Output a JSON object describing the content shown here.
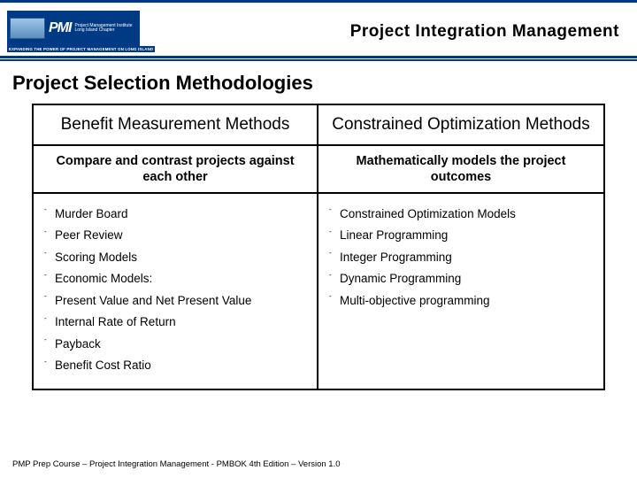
{
  "header": {
    "logo_acronym": "PMI",
    "logo_line1": "Project Management Institute",
    "logo_line2": "Long Island Chapter",
    "logo_tagline": "EXPANDING THE POWER OF PROJECT MANAGEMENT ON LONG ISLAND",
    "title": "Project Integration Management"
  },
  "section_title": "Project Selection Methodologies",
  "table": {
    "columns": [
      {
        "heading": "Benefit Measurement Methods",
        "subheading": "Compare and contrast projects against each other",
        "items": [
          "Murder Board",
          "Peer Review",
          "Scoring Models",
          "Economic Models:",
          "Present Value and Net Present Value",
          "Internal Rate of Return",
          "Payback",
          "Benefit Cost Ratio"
        ]
      },
      {
        "heading": "Constrained Optimization Methods",
        "subheading": "Mathematically models the project outcomes",
        "items": [
          "Constrained Optimization Models",
          "Linear Programming",
          "Integer Programming",
          "Dynamic Programming",
          "Multi-objective programming"
        ]
      }
    ]
  },
  "footer": "PMP Prep Course – Project Integration Management - PMBOK 4th Edition – Version 1.0",
  "colors": {
    "brand_blue": "#003a84",
    "text": "#000000",
    "background": "#ffffff"
  }
}
